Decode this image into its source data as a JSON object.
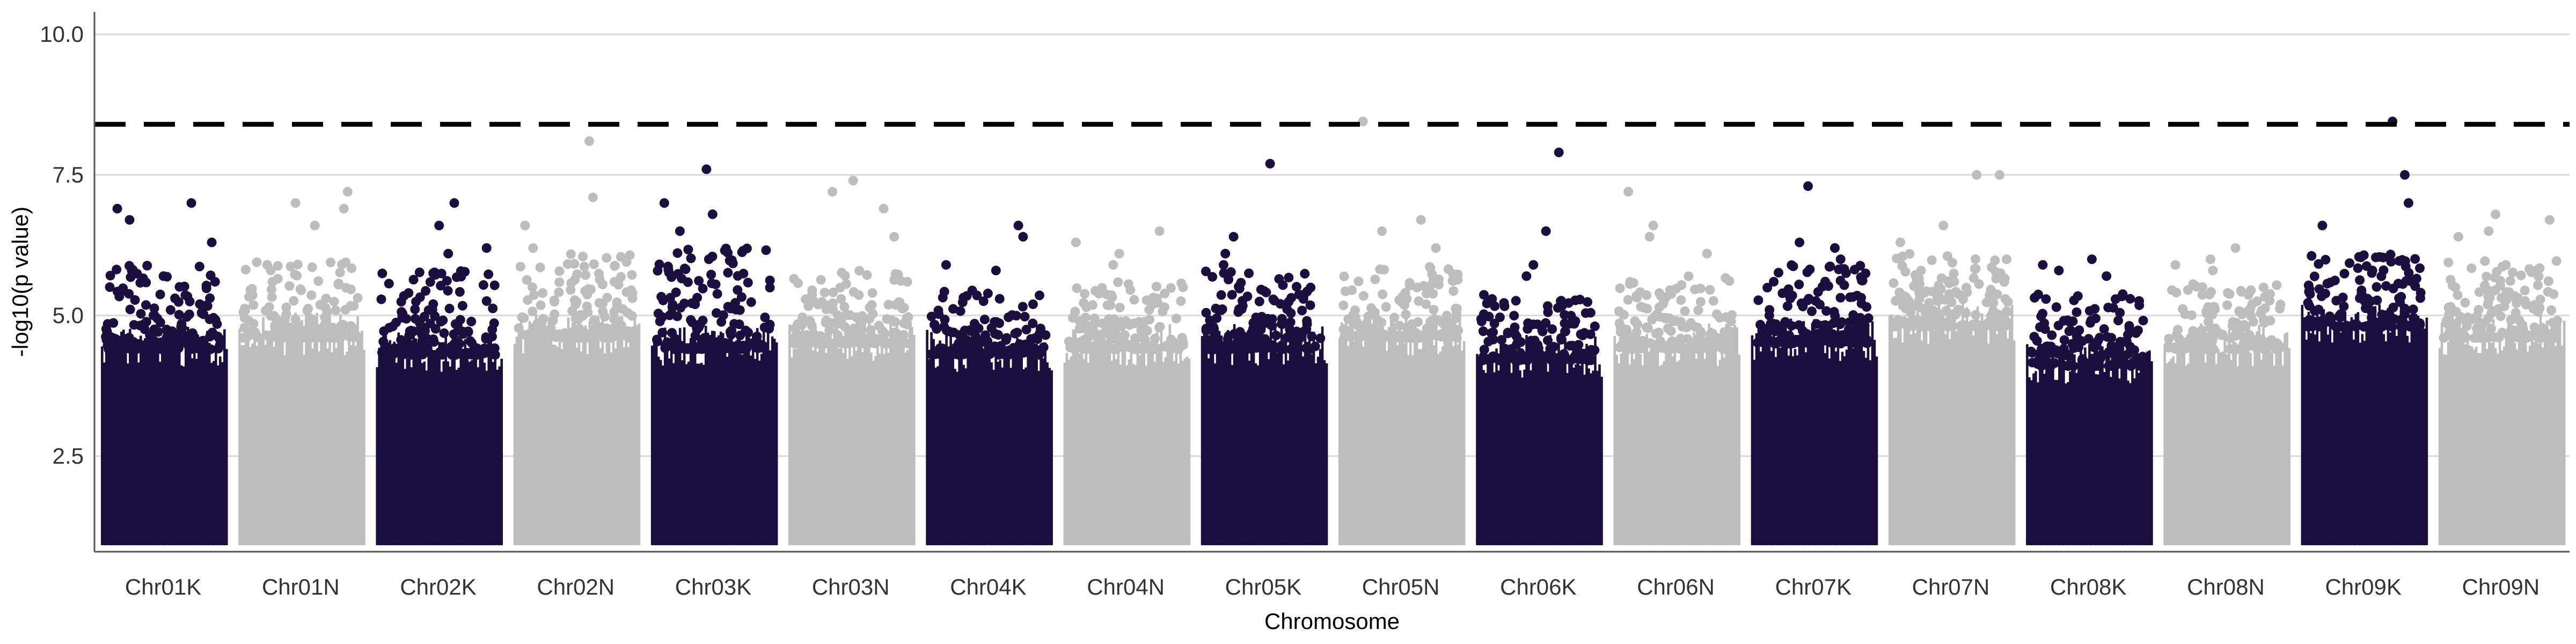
{
  "chart_data": {
    "type": "scatter",
    "subtype": "manhattan",
    "xlabel": "Chromosome",
    "ylabel": "-log10(p value)",
    "ylim": [
      0.8,
      10.4
    ],
    "yticks": [
      "2.5",
      "5.0",
      "7.5",
      "10.0"
    ],
    "ytick_values": [
      2.5,
      5.0,
      7.5,
      10.0
    ],
    "grid": true,
    "significance_threshold": 8.4,
    "point_floor": 1.0,
    "colors": {
      "dark": "#1b0e3f",
      "light": "#bdbdbd",
      "grid": "#d9d9d9",
      "axis": "#555555",
      "threshold": "#000000"
    },
    "categories": [
      "Chr01K",
      "Chr01N",
      "Chr02K",
      "Chr02N",
      "Chr03K",
      "Chr03N",
      "Chr04K",
      "Chr04N",
      "Chr05K",
      "Chr05N",
      "Chr06K",
      "Chr06N",
      "Chr07K",
      "Chr07N",
      "Chr08K",
      "Chr08N",
      "Chr09K",
      "Chr09N"
    ],
    "series": [
      {
        "name": "Chr01K",
        "color": "dark",
        "dense_top": 4.4,
        "scatter_top": 5.9,
        "peaks": [
          6.7,
          6.9,
          7.0,
          6.3
        ]
      },
      {
        "name": "Chr01N",
        "color": "light",
        "dense_top": 4.6,
        "scatter_top": 6.0,
        "peaks": [
          7.2,
          7.0,
          6.9,
          6.6
        ]
      },
      {
        "name": "Chr02K",
        "color": "dark",
        "dense_top": 4.3,
        "scatter_top": 5.8,
        "peaks": [
          7.0,
          6.6,
          6.2,
          6.1
        ]
      },
      {
        "name": "Chr02N",
        "color": "light",
        "dense_top": 4.6,
        "scatter_top": 6.1,
        "peaks": [
          8.1,
          7.1,
          6.6,
          6.2
        ]
      },
      {
        "name": "Chr03K",
        "color": "dark",
        "dense_top": 4.4,
        "scatter_top": 6.2,
        "peaks": [
          7.6,
          7.0,
          6.8,
          6.5
        ]
      },
      {
        "name": "Chr03N",
        "color": "light",
        "dense_top": 4.5,
        "scatter_top": 5.8,
        "peaks": [
          7.4,
          7.2,
          6.9,
          6.4
        ]
      },
      {
        "name": "Chr04K",
        "color": "dark",
        "dense_top": 4.3,
        "scatter_top": 5.5,
        "peaks": [
          6.6,
          6.4,
          5.9,
          5.8
        ]
      },
      {
        "name": "Chr04N",
        "color": "light",
        "dense_top": 4.4,
        "scatter_top": 5.6,
        "peaks": [
          6.5,
          6.3,
          6.1,
          5.9
        ]
      },
      {
        "name": "Chr05K",
        "color": "dark",
        "dense_top": 4.4,
        "scatter_top": 5.8,
        "peaks": [
          7.7,
          6.4,
          6.1,
          5.9
        ]
      },
      {
        "name": "Chr05N",
        "color": "light",
        "dense_top": 4.6,
        "scatter_top": 5.9,
        "peaks": [
          8.45,
          6.7,
          6.5,
          6.2
        ]
      },
      {
        "name": "Chr06K",
        "color": "dark",
        "dense_top": 4.2,
        "scatter_top": 5.4,
        "peaks": [
          7.9,
          6.5,
          5.9,
          5.7
        ]
      },
      {
        "name": "Chr06N",
        "color": "light",
        "dense_top": 4.4,
        "scatter_top": 5.7,
        "peaks": [
          7.2,
          6.6,
          6.4,
          6.1
        ]
      },
      {
        "name": "Chr07K",
        "color": "dark",
        "dense_top": 4.5,
        "scatter_top": 5.9,
        "peaks": [
          7.3,
          6.3,
          6.2,
          6.0
        ]
      },
      {
        "name": "Chr07N",
        "color": "light",
        "dense_top": 4.8,
        "scatter_top": 6.1,
        "peaks": [
          7.5,
          7.5,
          6.6,
          6.3
        ]
      },
      {
        "name": "Chr08K",
        "color": "dark",
        "dense_top": 4.1,
        "scatter_top": 5.4,
        "peaks": [
          6.0,
          5.9,
          5.8,
          5.7
        ]
      },
      {
        "name": "Chr08N",
        "color": "light",
        "dense_top": 4.4,
        "scatter_top": 5.6,
        "peaks": [
          6.2,
          6.0,
          5.9,
          5.8
        ]
      },
      {
        "name": "Chr09K",
        "color": "dark",
        "dense_top": 4.8,
        "scatter_top": 6.1,
        "peaks": [
          8.45,
          7.5,
          7.0,
          6.6
        ]
      },
      {
        "name": "Chr09N",
        "color": "light",
        "dense_top": 4.6,
        "scatter_top": 6.0,
        "peaks": [
          6.8,
          6.7,
          6.5,
          6.4
        ]
      }
    ]
  }
}
